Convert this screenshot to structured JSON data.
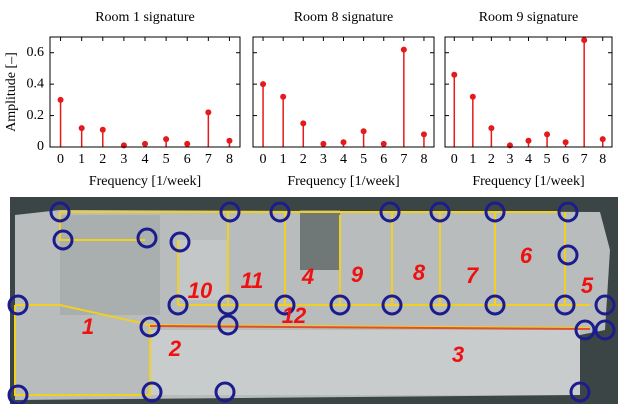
{
  "chart_data": [
    {
      "type": "stem",
      "title": "Room 1 signature",
      "xlabel": "Frequency [1/week]",
      "ylabel": "Amplitude [–]",
      "color": "#e41a1c",
      "x": [
        0,
        1,
        2,
        3,
        4,
        5,
        6,
        7,
        8
      ],
      "values": [
        0.3,
        0.12,
        0.11,
        0.01,
        0.02,
        0.05,
        0.02,
        0.22,
        0.04
      ],
      "xlim": [
        -0.5,
        8.5
      ],
      "xticks": [
        0,
        1,
        2,
        3,
        4,
        5,
        6,
        7,
        8
      ],
      "ylim": [
        0,
        0.7
      ],
      "yticks": [
        0,
        0.2,
        0.4,
        0.6
      ],
      "grid": false
    },
    {
      "type": "stem",
      "title": "Room 8 signature",
      "xlabel": "Frequency [1/week]",
      "color": "#e41a1c",
      "x": [
        0,
        1,
        2,
        3,
        4,
        5,
        6,
        7,
        8
      ],
      "values": [
        0.4,
        0.32,
        0.15,
        0.02,
        0.03,
        0.1,
        0.02,
        0.62,
        0.08
      ],
      "xlim": [
        -0.5,
        8.5
      ],
      "xticks": [
        0,
        1,
        2,
        3,
        4,
        5,
        6,
        7,
        8
      ],
      "ylim": [
        0,
        0.7
      ],
      "yticks": [
        0,
        0.2,
        0.4,
        0.6
      ],
      "grid": false
    },
    {
      "type": "stem",
      "title": "Room 9 signature",
      "xlabel": "Frequency [1/week]",
      "color": "#e41a1c",
      "x": [
        0,
        1,
        2,
        3,
        4,
        5,
        6,
        7,
        8
      ],
      "values": [
        0.46,
        0.32,
        0.12,
        0.01,
        0.04,
        0.08,
        0.03,
        0.68,
        0.05
      ],
      "xlim": [
        -0.5,
        8.5
      ],
      "xticks": [
        0,
        1,
        2,
        3,
        4,
        5,
        6,
        7,
        8
      ],
      "ylim": [
        0,
        0.7
      ],
      "yticks": [
        0,
        0.2,
        0.4,
        0.6
      ],
      "grid": false
    }
  ],
  "map": {
    "room_labels": [
      "1",
      "2",
      "3",
      "4",
      "5",
      "6",
      "7",
      "8",
      "9",
      "10",
      "11",
      "12"
    ]
  }
}
